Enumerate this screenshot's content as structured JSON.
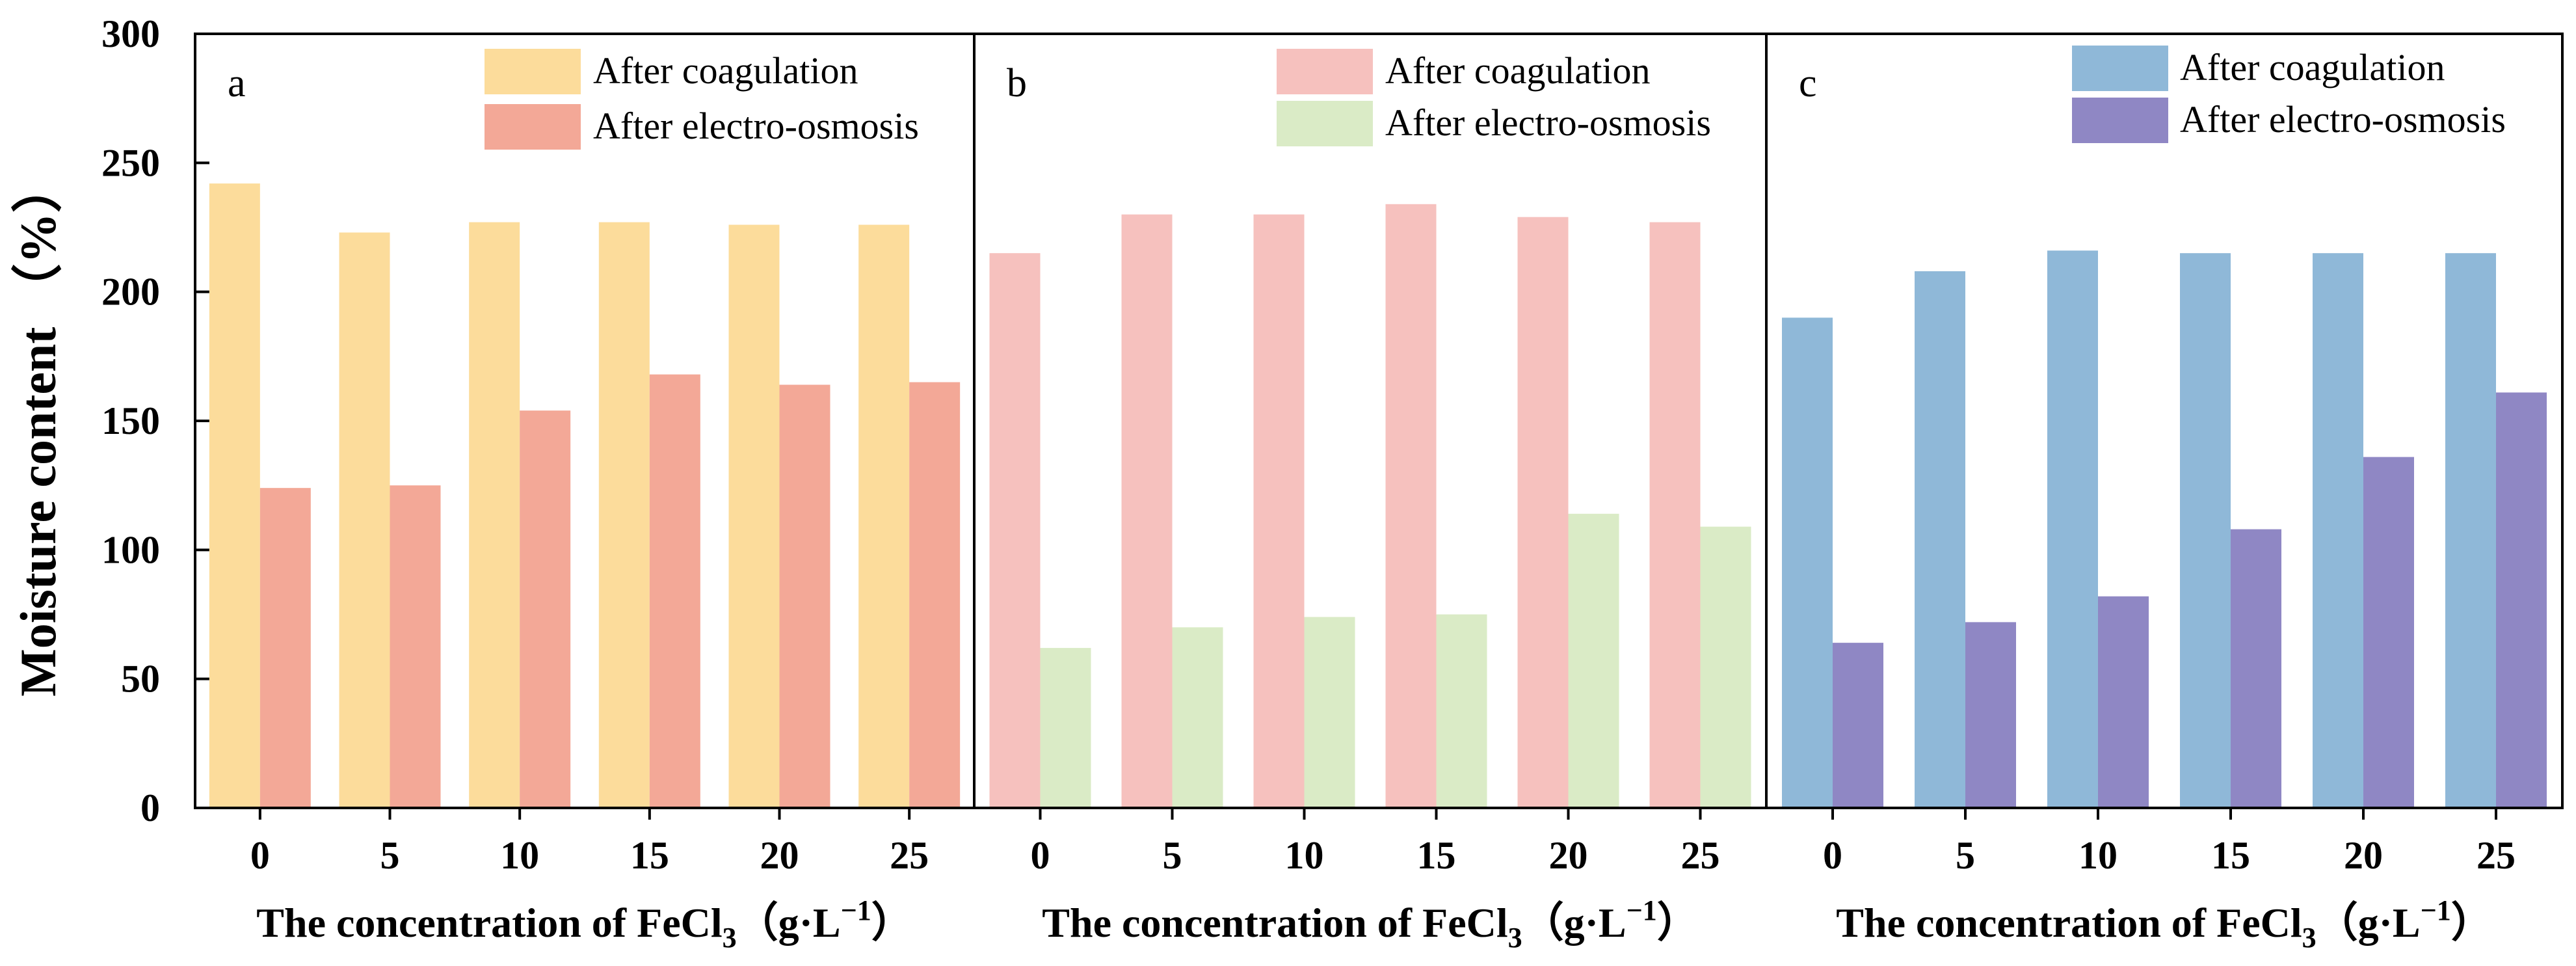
{
  "ylabel": "Moisture content （%）",
  "yticks": [
    0,
    50,
    100,
    150,
    200,
    250,
    300
  ],
  "chart_data": [
    {
      "type": "bar",
      "panel_label": "a",
      "categories": [
        "0",
        "5",
        "10",
        "15",
        "20",
        "25"
      ],
      "xlabel": {
        "prefix": "The concentration of FeCl",
        "sub": "3",
        "unit_open": "（g·L",
        "sup": "−1",
        "unit_close": "）"
      },
      "ylabel": "Moisture content （%）",
      "ylim": [
        0,
        300
      ],
      "legend_position": "top-right",
      "series": [
        {
          "name": "After coagulation",
          "color": "#FCDC9B",
          "values": [
            242,
            223,
            227,
            227,
            226,
            226
          ]
        },
        {
          "name": "After electro-osmosis",
          "color": "#F3A897",
          "values": [
            124,
            125,
            154,
            168,
            164,
            165
          ]
        }
      ]
    },
    {
      "type": "bar",
      "panel_label": "b",
      "categories": [
        "0",
        "5",
        "10",
        "15",
        "20",
        "25"
      ],
      "xlabel": {
        "prefix": "The concentration of FeCl",
        "sub": "3",
        "unit_open": "（g·L",
        "sup": "−1",
        "unit_close": "）"
      },
      "ylabel": "Moisture content （%）",
      "ylim": [
        0,
        300
      ],
      "legend_position": "top-right",
      "series": [
        {
          "name": "After coagulation",
          "color": "#F6C1BE",
          "values": [
            215,
            230,
            230,
            234,
            229,
            227
          ]
        },
        {
          "name": "After electro-osmosis",
          "color": "#DAEBC6",
          "values": [
            62,
            70,
            74,
            75,
            114,
            109
          ]
        }
      ]
    },
    {
      "type": "bar",
      "panel_label": "c",
      "categories": [
        "0",
        "5",
        "10",
        "15",
        "20",
        "25"
      ],
      "xlabel": {
        "prefix": "The concentration of FeCl",
        "sub": "3",
        "unit_open": "（g·L",
        "sup": "−1",
        "unit_close": "）"
      },
      "ylabel": "Moisture content （%）",
      "ylim": [
        0,
        300
      ],
      "legend_position": "top-right",
      "series": [
        {
          "name": "After coagulation",
          "color": "#8FB8D8",
          "values": [
            190,
            208,
            216,
            215,
            215,
            215
          ]
        },
        {
          "name": "After electro-osmosis",
          "color": "#8F87C4",
          "values": [
            64,
            72,
            82,
            108,
            136,
            161
          ]
        }
      ]
    }
  ]
}
